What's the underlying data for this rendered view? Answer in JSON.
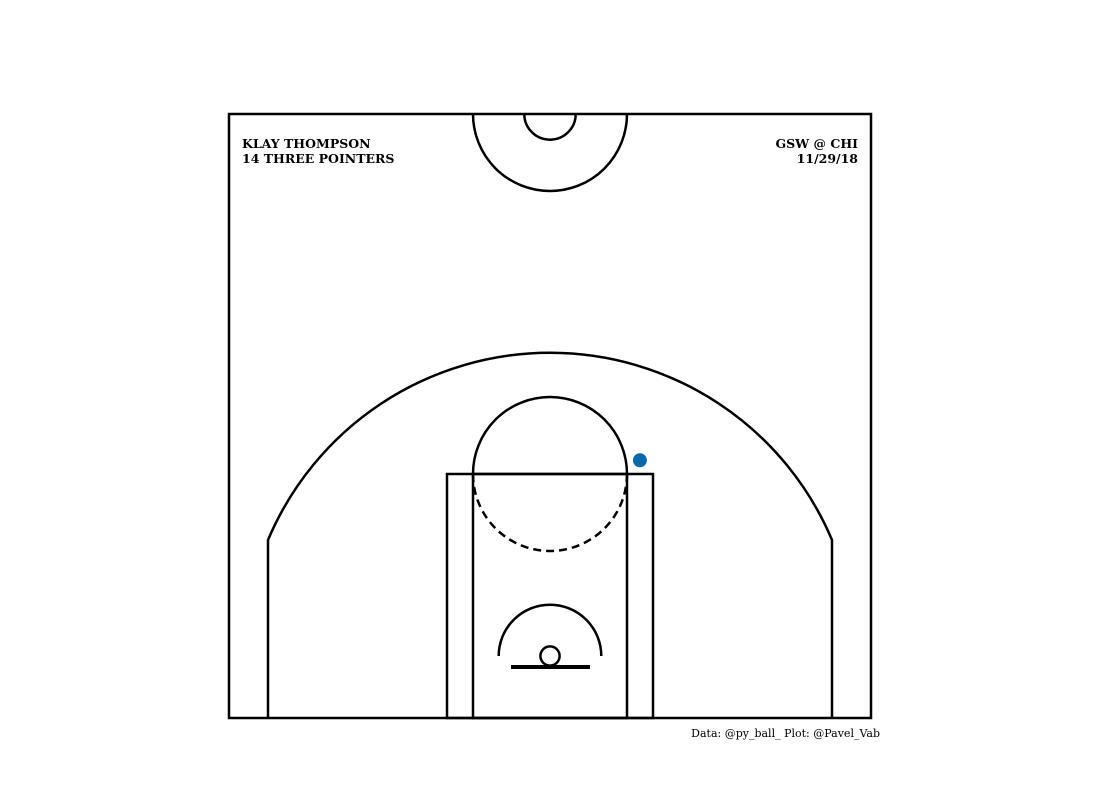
{
  "header": {
    "player_name": "KLAY THOMPSON",
    "subtitle": "14 THREE POINTERS",
    "matchup": "GSW @ CHI",
    "date": "11/29/18"
  },
  "footer": {
    "credits": "Data: @py_ball_  Plot: @Pavel_Vab"
  },
  "colors": {
    "shot_marker": "#0868ac",
    "court_lines": "#000000",
    "background": "#ffffff"
  },
  "chart_data": {
    "type": "scatter",
    "title": "KLAY THOMPSON 14 THREE POINTERS",
    "subtitle": "GSW @ CHI 11/29/18",
    "xlabel": "",
    "ylabel": "",
    "xlim": [
      -250,
      250
    ],
    "ylim": [
      -47.5,
      422.5
    ],
    "grid": false,
    "series": [
      {
        "points": [
          {
            "x": 70,
            "y": 153
          }
        ]
      }
    ]
  }
}
